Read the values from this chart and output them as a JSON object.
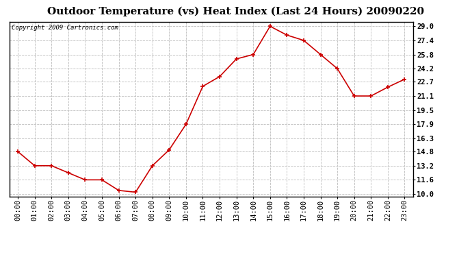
{
  "title": "Outdoor Temperature (vs) Heat Index (Last 24 Hours) 20090220",
  "copyright": "Copyright 2009 Cartronics.com",
  "x_labels": [
    "00:00",
    "01:00",
    "02:00",
    "03:00",
    "04:00",
    "05:00",
    "06:00",
    "07:00",
    "08:00",
    "09:00",
    "10:00",
    "11:00",
    "12:00",
    "13:00",
    "14:00",
    "15:00",
    "16:00",
    "17:00",
    "18:00",
    "19:00",
    "20:00",
    "21:00",
    "22:00",
    "23:00"
  ],
  "y_values": [
    14.8,
    13.2,
    13.2,
    12.4,
    11.6,
    11.6,
    10.4,
    10.2,
    13.2,
    15.0,
    17.9,
    22.2,
    23.3,
    25.3,
    25.8,
    29.0,
    28.0,
    27.4,
    25.8,
    24.2,
    21.1,
    21.1,
    22.1,
    23.0
  ],
  "line_color": "#cc0000",
  "marker": "+",
  "marker_size": 5,
  "marker_color": "#cc0000",
  "bg_color": "#ffffff",
  "plot_bg_color": "#ffffff",
  "grid_color": "#bbbbbb",
  "title_fontsize": 11,
  "copyright_fontsize": 6.5,
  "y_ticks": [
    10.0,
    11.6,
    13.2,
    14.8,
    16.3,
    17.9,
    19.5,
    21.1,
    22.7,
    24.2,
    25.8,
    27.4,
    29.0
  ],
  "ylim": [
    9.7,
    29.5
  ],
  "tick_label_fontsize": 7.5
}
